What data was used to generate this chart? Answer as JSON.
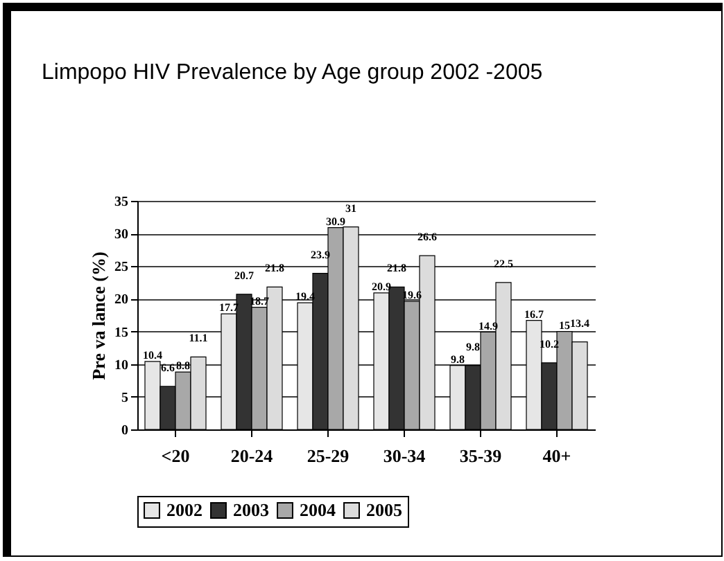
{
  "chart_data": {
    "type": "bar",
    "title": "Limpopo HIV Prevalence by Age group 2002  -2005",
    "ylabel": "Pre va lance  (%)",
    "categories": [
      "<20",
      "20-24",
      "25-29",
      "30-34",
      "35-39",
      "40+"
    ],
    "series": [
      {
        "name": "2002",
        "color": "#e6e6e6",
        "values": [
          10.4,
          17.7,
          19.4,
          20.9,
          9.8,
          16.7
        ]
      },
      {
        "name": "2003",
        "color": "#333333",
        "values": [
          6.6,
          20.7,
          23.9,
          21.8,
          9.8,
          10.2
        ]
      },
      {
        "name": "2004",
        "color": "#a8a8a8",
        "values": [
          8.8,
          18.7,
          30.9,
          19.6,
          14.9,
          15
        ]
      },
      {
        "name": "2005",
        "color": "#dcdcdc",
        "values": [
          11.1,
          21.8,
          31,
          26.6,
          22.5,
          13.4
        ]
      }
    ],
    "ylim": [
      0,
      35
    ],
    "yticks": [
      0,
      5,
      10,
      15,
      20,
      25,
      30,
      35
    ],
    "grid": "y",
    "legend": "bottom",
    "data_labels": true
  }
}
